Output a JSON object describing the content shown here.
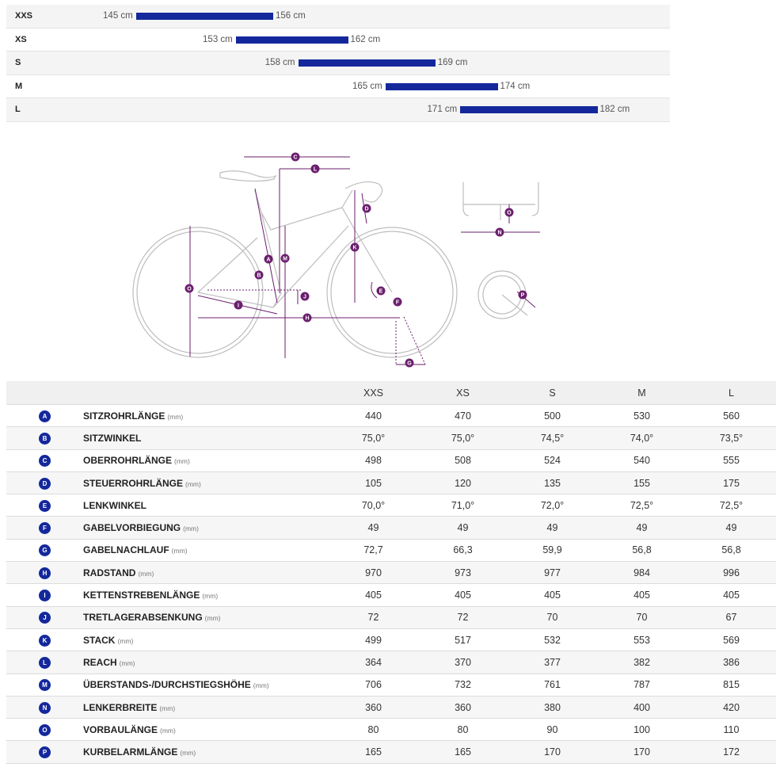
{
  "size_chart": {
    "unit": "cm",
    "rows": [
      {
        "size": "XXS",
        "min": 145,
        "max": 156,
        "min_label": "145 cm",
        "max_label": "156 cm"
      },
      {
        "size": "XS",
        "min": 153,
        "max": 162,
        "min_label": "153 cm",
        "max_label": "162 cm"
      },
      {
        "size": "S",
        "min": 158,
        "max": 169,
        "min_label": "158 cm",
        "max_label": "169 cm"
      },
      {
        "size": "M",
        "min": 165,
        "max": 174,
        "min_label": "165 cm",
        "max_label": "174 cm"
      },
      {
        "size": "L",
        "min": 171,
        "max": 182,
        "min_label": "171 cm",
        "max_label": "182 cm"
      }
    ]
  },
  "chart_data": {
    "type": "bar",
    "categories": [
      "XXS",
      "XS",
      "S",
      "M",
      "L"
    ],
    "ranges": [
      [
        145,
        156
      ],
      [
        153,
        162
      ],
      [
        158,
        169
      ],
      [
        165,
        174
      ],
      [
        171,
        182
      ]
    ],
    "unit": "cm",
    "orientation": "horizontal floating range bars",
    "bar_color": "#14289c",
    "grid": false
  },
  "diagram": {
    "labels": [
      "A",
      "B",
      "C",
      "D",
      "E",
      "F",
      "G",
      "H",
      "I",
      "J",
      "K",
      "L",
      "M",
      "N",
      "O",
      "P"
    ],
    "color": "#6b1f6e"
  },
  "geometry": {
    "headers": [
      "",
      "",
      "XXS",
      "XS",
      "S",
      "M",
      "L"
    ],
    "rows": [
      {
        "badge": "A",
        "name": "SITZROHRLÄNGE",
        "unit": "(mm)",
        "values": [
          "440",
          "470",
          "500",
          "530",
          "560"
        ]
      },
      {
        "badge": "B",
        "name": "SITZWINKEL",
        "unit": "",
        "values": [
          "75,0°",
          "75,0°",
          "74,5°",
          "74,0°",
          "73,5°"
        ]
      },
      {
        "badge": "C",
        "name": "OBERROHRLÄNGE",
        "unit": "(mm)",
        "values": [
          "498",
          "508",
          "524",
          "540",
          "555"
        ]
      },
      {
        "badge": "D",
        "name": "STEUERROHRLÄNGE",
        "unit": "(mm)",
        "values": [
          "105",
          "120",
          "135",
          "155",
          "175"
        ]
      },
      {
        "badge": "E",
        "name": "LENKWINKEL",
        "unit": "",
        "values": [
          "70,0°",
          "71,0°",
          "72,0°",
          "72,5°",
          "72,5°"
        ]
      },
      {
        "badge": "F",
        "name": "GABELVORBIEGUNG",
        "unit": "(mm)",
        "values": [
          "49",
          "49",
          "49",
          "49",
          "49"
        ]
      },
      {
        "badge": "G",
        "name": "GABELNACHLAUF",
        "unit": "(mm)",
        "values": [
          "72,7",
          "66,3",
          "59,9",
          "56,8",
          "56,8"
        ]
      },
      {
        "badge": "H",
        "name": "RADSTAND",
        "unit": "(mm)",
        "values": [
          "970",
          "973",
          "977",
          "984",
          "996"
        ]
      },
      {
        "badge": "I",
        "name": "KETTENSTREBENLÄNGE",
        "unit": "(mm)",
        "values": [
          "405",
          "405",
          "405",
          "405",
          "405"
        ]
      },
      {
        "badge": "J",
        "name": "TRETLAGERABSENKUNG",
        "unit": "(mm)",
        "values": [
          "72",
          "72",
          "70",
          "70",
          "67"
        ]
      },
      {
        "badge": "K",
        "name": "STACK",
        "unit": "(mm)",
        "values": [
          "499",
          "517",
          "532",
          "553",
          "569"
        ]
      },
      {
        "badge": "L",
        "name": "REACH",
        "unit": "(mm)",
        "values": [
          "364",
          "370",
          "377",
          "382",
          "386"
        ]
      },
      {
        "badge": "M",
        "name": "ÜBERSTANDS-/DURCHSTIEGSHÖHE",
        "unit": "(mm)",
        "values": [
          "706",
          "732",
          "761",
          "787",
          "815"
        ]
      },
      {
        "badge": "N",
        "name": "LENKERBREITE",
        "unit": "(mm)",
        "values": [
          "360",
          "360",
          "380",
          "400",
          "420"
        ]
      },
      {
        "badge": "O",
        "name": "VORBAULÄNGE",
        "unit": "(mm)",
        "values": [
          "80",
          "80",
          "90",
          "100",
          "110"
        ]
      },
      {
        "badge": "P",
        "name": "KURBELARMLÄNGE",
        "unit": "(mm)",
        "values": [
          "165",
          "165",
          "170",
          "170",
          "172"
        ]
      }
    ]
  }
}
